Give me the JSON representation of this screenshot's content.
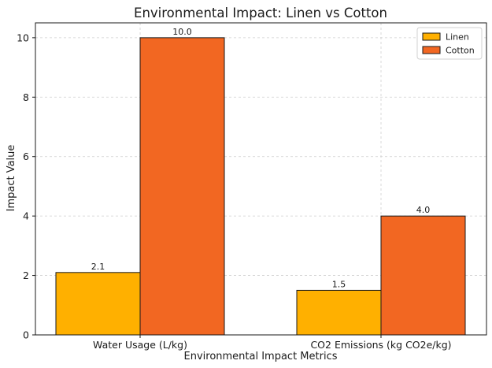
{
  "chart_data": {
    "type": "bar",
    "title": "Environmental Impact: Linen vs Cotton",
    "xlabel": "Environmental Impact Metrics",
    "ylabel": "Impact Value",
    "categories": [
      "Water Usage (L/kg)",
      "CO2 Emissions (kg CO2e/kg)"
    ],
    "series": [
      {
        "name": "Linen",
        "values": [
          2.1,
          1.5
        ],
        "color": "#ffb000",
        "labels": [
          "2.1",
          "1.5"
        ]
      },
      {
        "name": "Cotton",
        "values": [
          10.0,
          4.0
        ],
        "color": "#f26722",
        "labels": [
          "10.0",
          "4.0"
        ]
      }
    ],
    "ylim": [
      0,
      10.5
    ],
    "yticks": [
      0,
      2,
      4,
      6,
      8,
      10
    ],
    "grid": true,
    "legend_position": "top-right"
  }
}
